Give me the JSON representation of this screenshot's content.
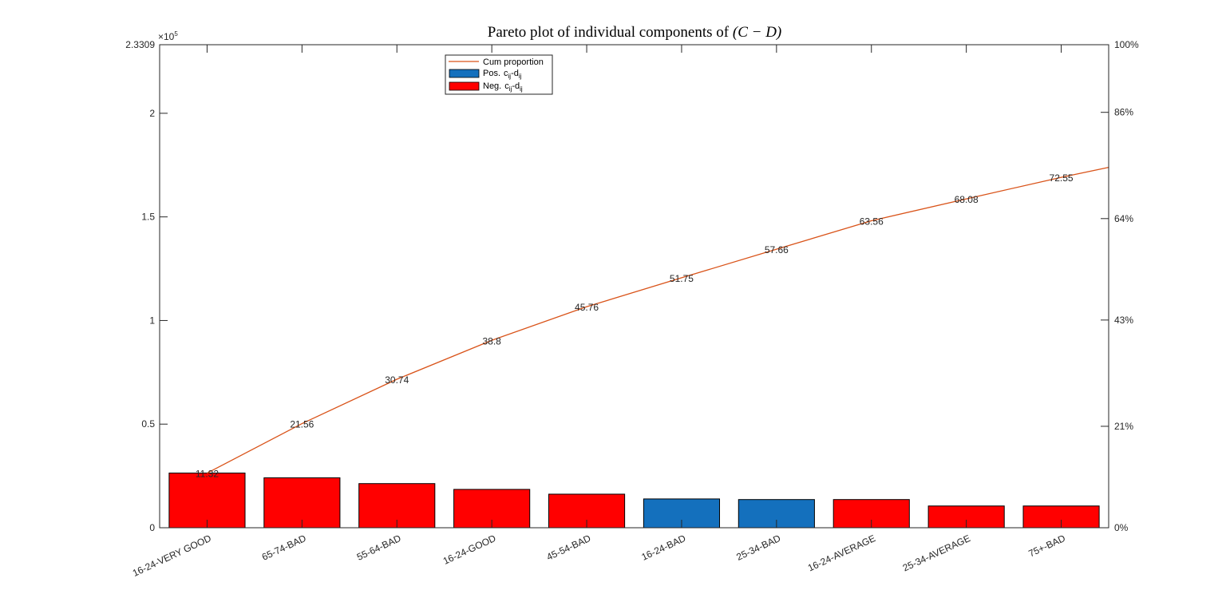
{
  "chart_data": {
    "type": "bar",
    "title": "Pareto plot of individual components of ",
    "title_math": "(C − D)",
    "categories": [
      "16-24-VERY GOOD",
      "65-74-BAD",
      "55-64-BAD",
      "16-24-GOOD",
      "45-54-BAD",
      "16-24-BAD",
      "25-34-BAD",
      "16-24-AVERAGE",
      "25-34-AVERAGE",
      "75+-BAD"
    ],
    "values": [
      26400,
      24100,
      21300,
      18500,
      16200,
      13900,
      13600,
      13600,
      10500,
      10500
    ],
    "signs": [
      "neg",
      "neg",
      "neg",
      "neg",
      "neg",
      "pos",
      "pos",
      "neg",
      "neg",
      "neg"
    ],
    "cum_proportion": [
      11.32,
      21.56,
      30.74,
      38.8,
      45.76,
      51.75,
      57.66,
      63.56,
      68.08,
      72.55
    ],
    "cum_line_end": 74.6,
    "cum_labels": [
      "11.32",
      "21.56",
      "30.74",
      "38.8",
      "45.76",
      "51.75",
      "57.66",
      "63.56",
      "68.08",
      "72.55"
    ],
    "ylim": [
      0,
      233090
    ],
    "y_exponent_label": "×10",
    "y_exponent": "5",
    "y_ticks": [
      0,
      50000,
      100000,
      150000,
      200000,
      233090
    ],
    "y_tick_labels": [
      "0",
      "0.5",
      "1",
      "1.5",
      "2",
      "2.3309"
    ],
    "y2_ticks": [
      0,
      21,
      43,
      64,
      86,
      100
    ],
    "y2_tick_labels": [
      "0%",
      "21%",
      "43%",
      "64%",
      "86%",
      "100%"
    ],
    "legend": {
      "placement": "top-left",
      "entries": [
        {
          "kind": "line",
          "label": "Cum proportion"
        },
        {
          "kind": "bar-pos",
          "label": "Pos.",
          "sub_c": "ij",
          "sub_d": "ij"
        },
        {
          "kind": "bar-neg",
          "label": "Neg.",
          "sub_c": "ij",
          "sub_d": "ij"
        }
      ]
    },
    "colors": {
      "pos": "#1470BD",
      "neg": "#FF0000",
      "line": "#D95319",
      "axis": "#262626"
    }
  }
}
